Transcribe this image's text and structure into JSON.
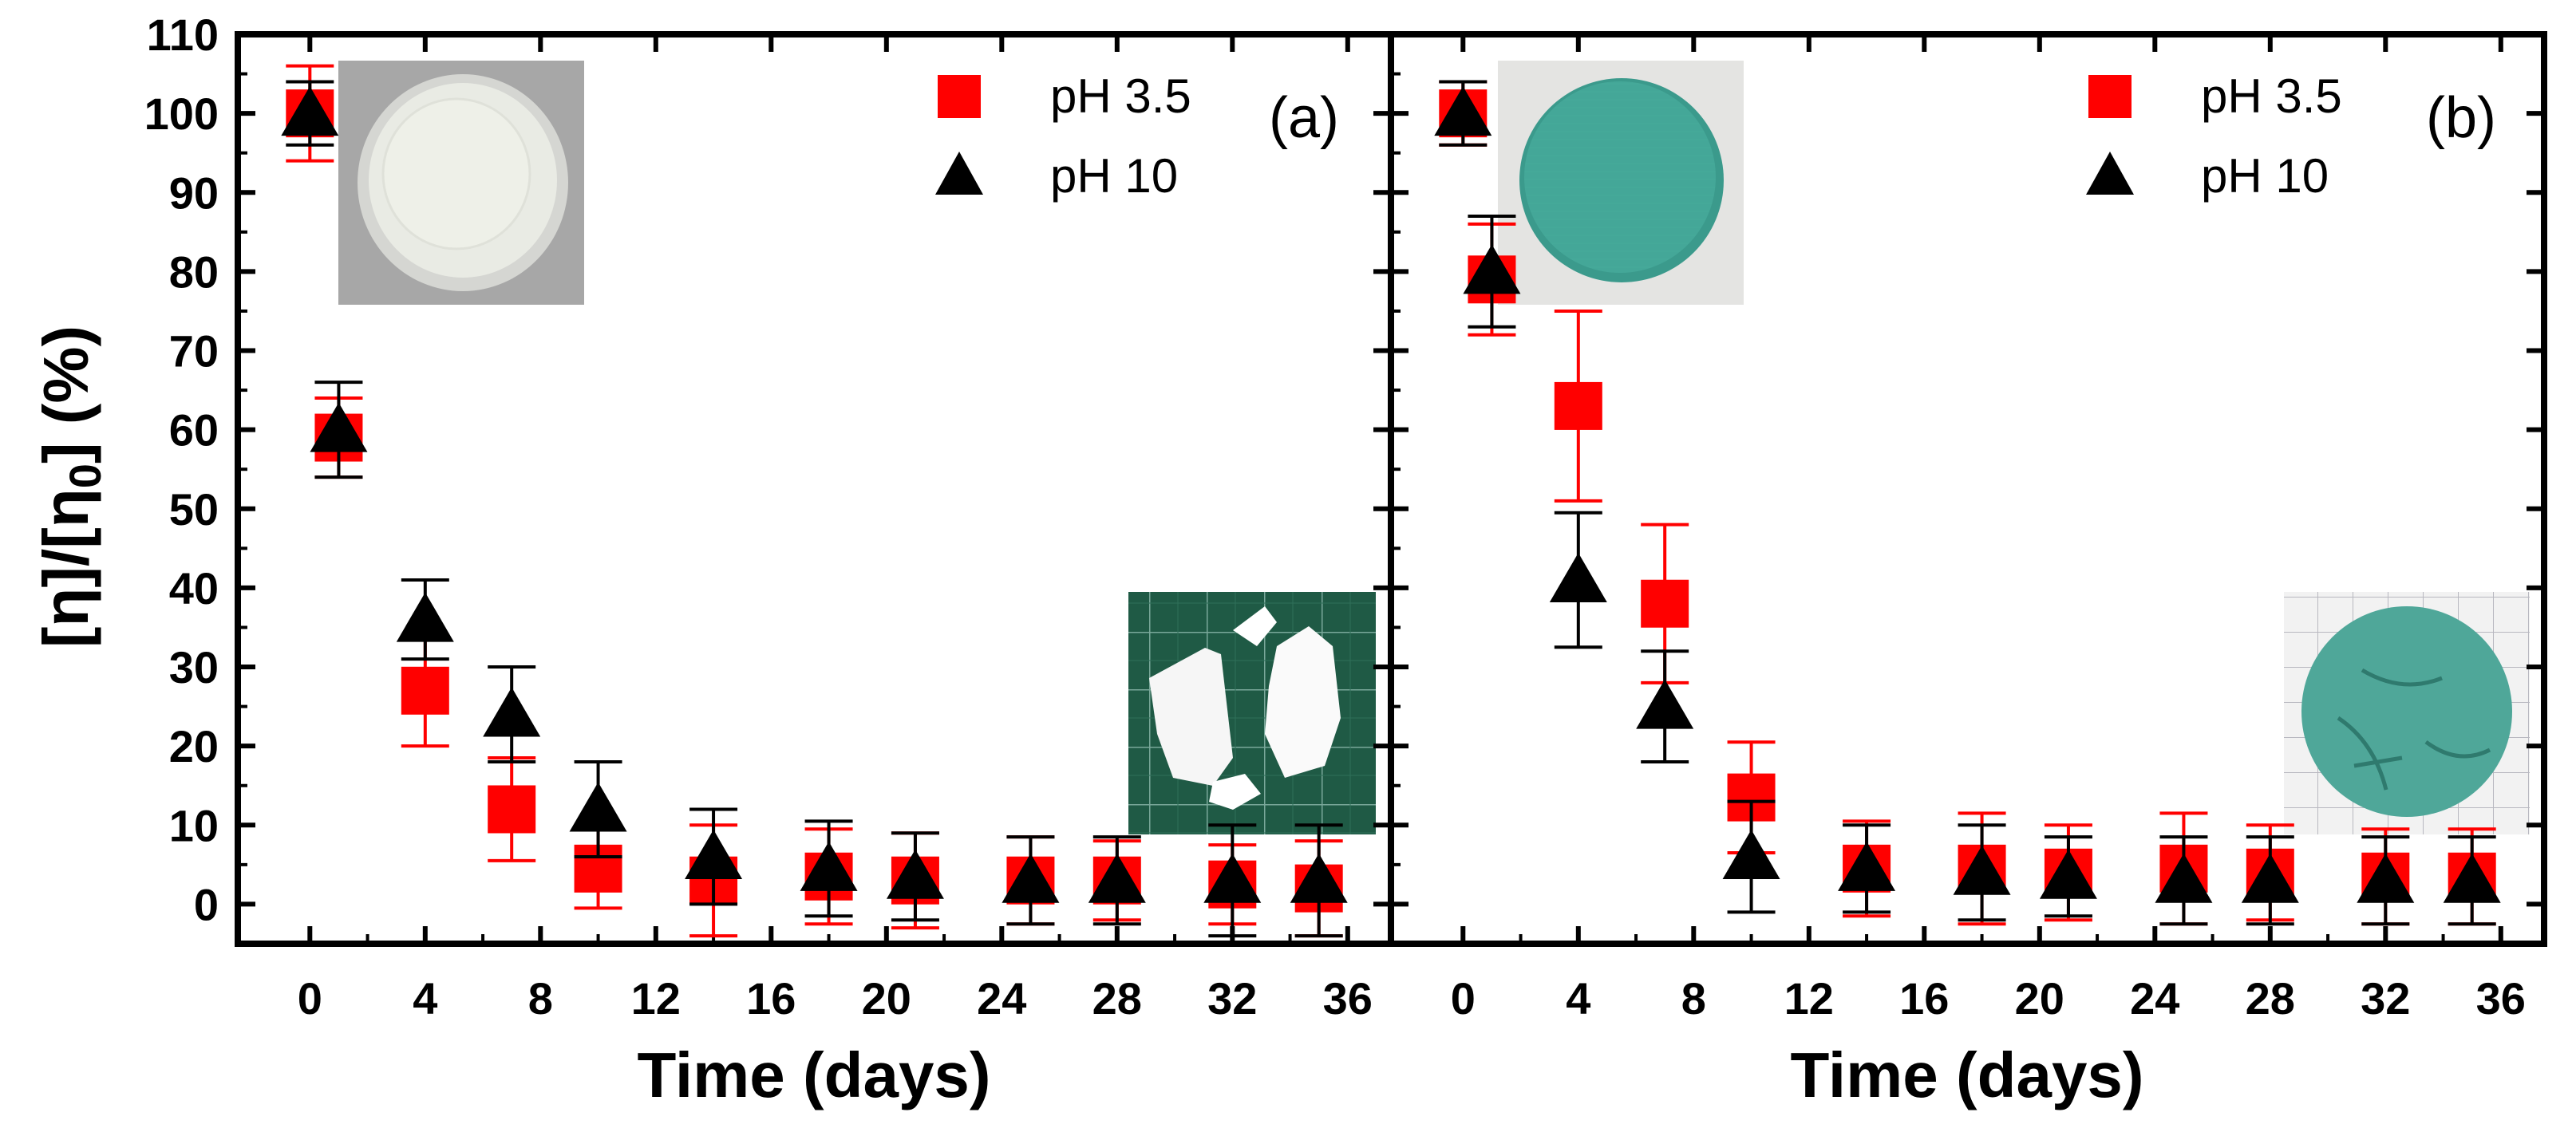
{
  "chart_data": [
    {
      "type": "scatter",
      "panel_label": "(a)",
      "xlabel": "Time (days)",
      "ylabel": "[η]/[η₀] (%)",
      "xlim": [
        -2.5,
        37.5
      ],
      "ylim": [
        -5,
        110
      ],
      "xticks": [
        0,
        4,
        8,
        12,
        16,
        20,
        24,
        28,
        32,
        36
      ],
      "yticks": [
        0,
        10,
        20,
        30,
        40,
        50,
        60,
        70,
        80,
        90,
        100,
        110
      ],
      "legend_position": "top-right",
      "insets": [
        "transparent-disc-photo",
        "white-fragments-on-grid-photo"
      ],
      "series": [
        {
          "name": "pH 3.5",
          "marker": "square",
          "color": "#ff0000",
          "x": [
            0,
            1,
            4,
            7,
            10,
            14,
            18,
            21,
            25,
            28,
            32,
            35
          ],
          "y": [
            100,
            59,
            27,
            12,
            4.5,
            3,
            3.5,
            3,
            3,
            3,
            2.5,
            2
          ],
          "err": [
            6,
            5,
            7,
            6.5,
            5,
            7,
            6,
            6,
            5.5,
            5,
            5,
            6
          ]
        },
        {
          "name": "pH 10",
          "marker": "triangle",
          "color": "#000000",
          "x": [
            0,
            1,
            4,
            7,
            10,
            14,
            18,
            21,
            25,
            28,
            32,
            35
          ],
          "y": [
            100,
            60,
            36,
            24,
            12,
            6,
            4.5,
            3.5,
            3,
            3,
            3,
            3
          ],
          "err": [
            4,
            6,
            5,
            6,
            6,
            6,
            6,
            5.5,
            5.5,
            5.5,
            7,
            7
          ]
        }
      ]
    },
    {
      "type": "scatter",
      "panel_label": "(b)",
      "xlabel": "Time (days)",
      "xlim": [
        -2.5,
        37.5
      ],
      "ylim": [
        -5,
        110
      ],
      "xticks": [
        0,
        4,
        8,
        12,
        16,
        20,
        24,
        28,
        32,
        36
      ],
      "legend_position": "top-right",
      "insets": [
        "teal-disc-photo",
        "degraded-teal-disc-on-grid-photo"
      ],
      "series": [
        {
          "name": "pH 3.5",
          "marker": "square",
          "color": "#ff0000",
          "x": [
            0,
            1,
            4,
            7,
            10,
            14,
            18,
            21,
            25,
            28,
            32,
            35
          ],
          "y": [
            100,
            79,
            63,
            38,
            13.5,
            4.5,
            4.5,
            4,
            4.5,
            4,
            3.5,
            3.5
          ],
          "err": [
            4,
            7,
            12,
            10,
            7,
            6,
            7,
            6,
            7,
            6,
            6,
            6
          ]
        },
        {
          "name": "pH 10",
          "marker": "triangle",
          "color": "#000000",
          "x": [
            0,
            1,
            4,
            7,
            10,
            14,
            18,
            21,
            25,
            28,
            32,
            35
          ],
          "y": [
            100,
            80,
            41,
            25,
            6,
            4.5,
            4,
            3.5,
            3,
            3,
            3,
            3
          ],
          "err": [
            4,
            7,
            8.5,
            7,
            7,
            5.5,
            6,
            5,
            5.5,
            5.5,
            5.5,
            5.5
          ]
        }
      ]
    }
  ]
}
